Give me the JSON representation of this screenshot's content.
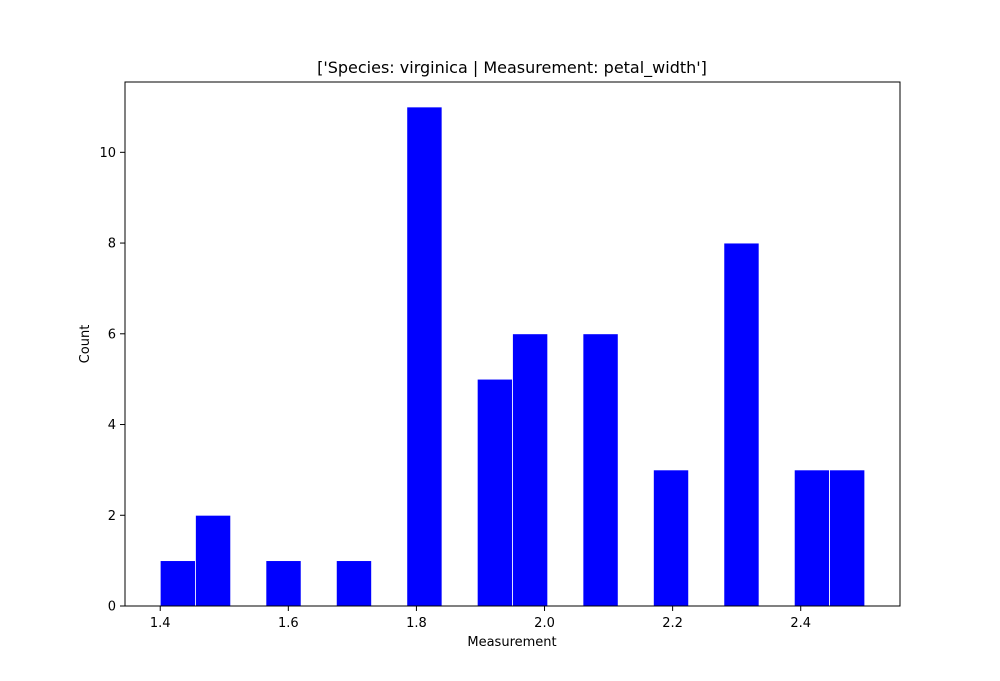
{
  "chart_data": {
    "type": "bar",
    "title": "['Species: virginica | Measurement: petal_width']",
    "xlabel": "Measurement",
    "ylabel": "Count",
    "xlim": [
      1.345,
      2.555
    ],
    "ylim": [
      0,
      11.55
    ],
    "xticks": [
      1.4,
      1.6,
      1.8,
      2.0,
      2.2,
      2.4
    ],
    "xtick_labels": [
      "1.4",
      "1.6",
      "1.8",
      "2.0",
      "2.2",
      "2.4"
    ],
    "yticks": [
      0,
      2,
      4,
      6,
      8,
      10
    ],
    "ytick_labels": [
      "0",
      "2",
      "4",
      "6",
      "8",
      "10"
    ],
    "bar_color": "#0000ff",
    "bin_width": 0.055,
    "bins": [
      {
        "start": 1.4,
        "count": 1
      },
      {
        "start": 1.455,
        "count": 2
      },
      {
        "start": 1.565,
        "count": 1
      },
      {
        "start": 1.675,
        "count": 1
      },
      {
        "start": 1.785,
        "count": 11
      },
      {
        "start": 1.895,
        "count": 5
      },
      {
        "start": 1.95,
        "count": 6
      },
      {
        "start": 2.06,
        "count": 6
      },
      {
        "start": 2.17,
        "count": 3
      },
      {
        "start": 2.28,
        "count": 8
      },
      {
        "start": 2.39,
        "count": 3
      },
      {
        "start": 2.445,
        "count": 3
      }
    ],
    "grid": false,
    "legend": "none"
  }
}
